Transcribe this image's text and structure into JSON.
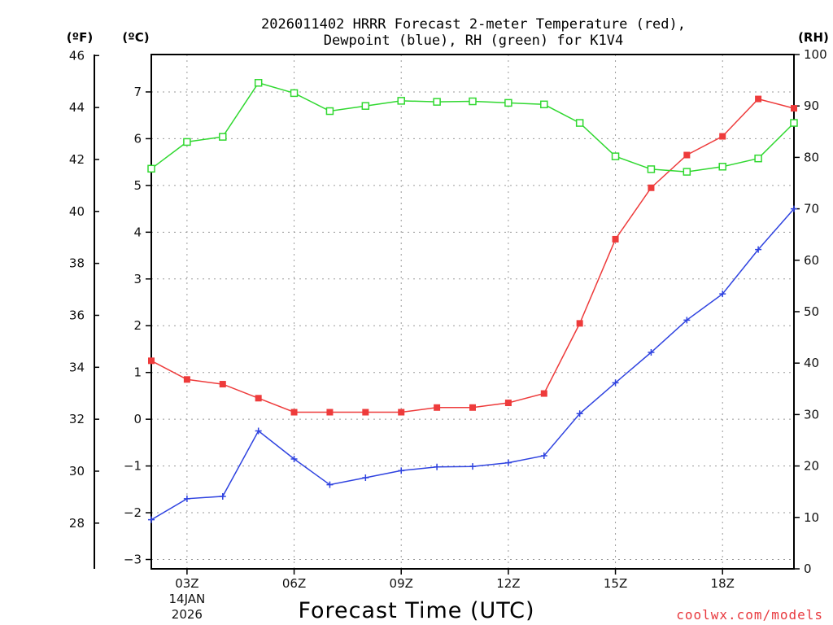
{
  "chart_data": {
    "type": "line",
    "title_line1": "2026011402 HRRR Forecast 2-meter Temperature (red),",
    "title_line2": "Dewpoint (blue), RH (green) for K1V4",
    "xlabel": "Forecast Time (UTC)",
    "credit": "coolwx.com/models",
    "units": {
      "fahrenheit": "(ºF)",
      "celsius": "(ºC)",
      "rh": "(RH)"
    },
    "hours": [
      2,
      3,
      4,
      5,
      6,
      7,
      8,
      9,
      10,
      11,
      12,
      13,
      14,
      15,
      16,
      17,
      18,
      19,
      20
    ],
    "x_ticks": [
      {
        "hour": 3,
        "label": "03Z",
        "sub1": "14JAN",
        "sub2": "2026"
      },
      {
        "hour": 6,
        "label": "06Z"
      },
      {
        "hour": 9,
        "label": "09Z"
      },
      {
        "hour": 12,
        "label": "12Z"
      },
      {
        "hour": 15,
        "label": "15Z"
      },
      {
        "hour": 18,
        "label": "18Z"
      }
    ],
    "xlim": [
      2,
      20
    ],
    "celsius_axis": {
      "ylim": [
        -3.2,
        7.8
      ],
      "ticks": [
        -3,
        -2,
        -1,
        0,
        1,
        2,
        3,
        4,
        5,
        6,
        7
      ],
      "labels": [
        "−3",
        "−2",
        "−1",
        "0",
        "1",
        "2",
        "3",
        "4",
        "5",
        "6",
        "7"
      ]
    },
    "fahrenheit_axis": {
      "ticks": [
        28,
        30,
        32,
        34,
        36,
        38,
        40,
        42,
        44,
        46
      ],
      "labels": [
        "28",
        "30",
        "32",
        "34",
        "36",
        "38",
        "40",
        "42",
        "44",
        "46"
      ]
    },
    "rh_axis": {
      "ylim": [
        0,
        100
      ],
      "ticks": [
        0,
        10,
        20,
        30,
        40,
        50,
        60,
        70,
        80,
        90,
        100
      ],
      "labels": [
        "0",
        "10",
        "20",
        "30",
        "40",
        "50",
        "60",
        "70",
        "80",
        "90",
        "100"
      ]
    },
    "series": [
      {
        "name": "Temperature",
        "axis": "celsius",
        "color": "#ee3b3b",
        "marker": "filled-square",
        "values": [
          1.25,
          0.85,
          0.75,
          0.45,
          0.15,
          0.15,
          0.15,
          0.15,
          0.25,
          0.25,
          0.35,
          0.55,
          2.05,
          3.85,
          4.95,
          5.65,
          6.05,
          6.85,
          6.65
        ]
      },
      {
        "name": "Dewpoint",
        "axis": "celsius",
        "color": "#2f43e0",
        "marker": "plus",
        "values": [
          -2.15,
          -1.7,
          -1.65,
          -0.25,
          -0.85,
          -1.4,
          -1.25,
          -1.1,
          -1.02,
          -1.01,
          -0.93,
          -0.78,
          0.12,
          0.78,
          1.43,
          2.12,
          2.68,
          3.63,
          4.5
        ]
      },
      {
        "name": "RH",
        "axis": "rh",
        "color": "#30d830",
        "marker": "open-square",
        "values": [
          77.8,
          83.0,
          84.0,
          94.5,
          92.5,
          89.0,
          90.0,
          91.0,
          90.8,
          90.9,
          90.6,
          90.3,
          86.7,
          80.2,
          77.7,
          77.2,
          78.2,
          79.8,
          86.7
        ]
      }
    ]
  }
}
